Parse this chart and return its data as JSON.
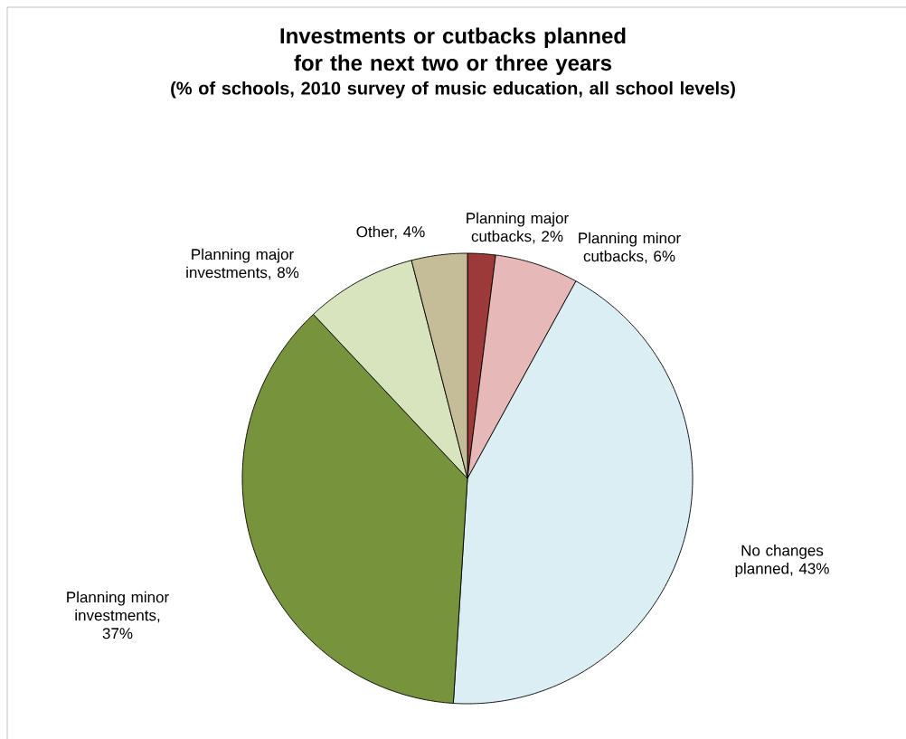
{
  "chart_data": {
    "type": "pie",
    "title": "Investments or cutbacks planned for the next two or three years",
    "subtitle": "(% of schools, 2010 survey of music education, all school levels)",
    "categories": [
      "Planning major cutbacks, 2%",
      "Planning minor cutbacks, 6%",
      "No changes planned, 43%",
      "Planning minor investments, 37%",
      "Planning major investments, 8%",
      "Other, 4%"
    ],
    "values": [
      2,
      6,
      43,
      37,
      8,
      4
    ],
    "colors": [
      "#9b3a38",
      "#e6b9b8",
      "#dbeef4",
      "#77933c",
      "#d7e4bd",
      "#c4bd97"
    ]
  }
}
